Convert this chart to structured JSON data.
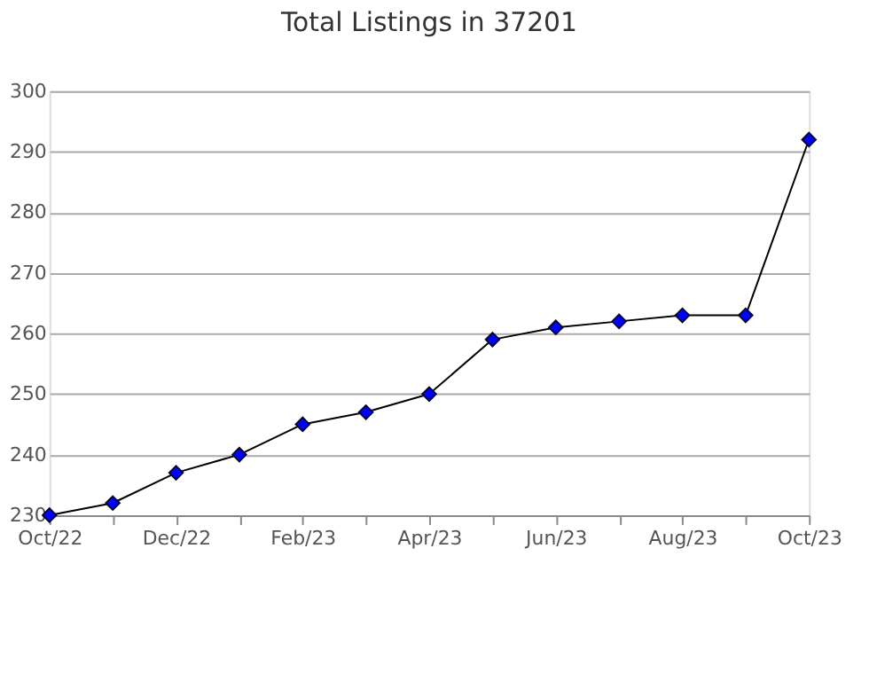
{
  "chart_data": {
    "type": "line",
    "title": "Total Listings in 37201",
    "categories": [
      "Oct/22",
      null,
      "Dec/22",
      null,
      "Feb/23",
      null,
      "Apr/23",
      null,
      "Jun/23",
      null,
      "Aug/23",
      null,
      "Oct/23"
    ],
    "series": [
      {
        "color": "#0000ff",
        "values": [
          230,
          232,
          237,
          240,
          245,
          247,
          250,
          259,
          261,
          262,
          263,
          263,
          292
        ]
      }
    ],
    "ylim": [
      230,
      300
    ],
    "yticks": [
      230,
      240,
      250,
      260,
      270,
      280,
      290,
      300
    ],
    "grid": "y",
    "marker": "diamond",
    "line_style": "solid"
  }
}
